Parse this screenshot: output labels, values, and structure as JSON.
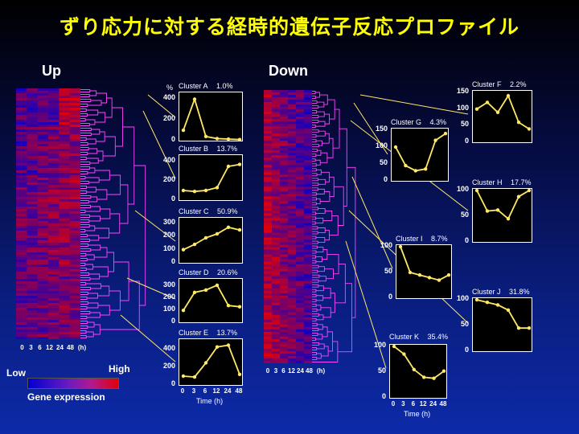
{
  "title": "ずり応力に対する経時的遺伝子反応プロファイル",
  "sections": {
    "up_label": "Up",
    "down_label": "Down"
  },
  "heatmap": {
    "time_labels": [
      "0",
      "3",
      "6",
      "12",
      "24",
      "48",
      "(h)"
    ],
    "colors": {
      "low": "#0000d0",
      "high": "#e0000a",
      "mid": "#6a1cc0"
    }
  },
  "legend": {
    "low": "Low",
    "high": "High",
    "caption": "Gene expression"
  },
  "dendrogram_color": "#ff44ff",
  "line_color": "#ffe866",
  "chart_data": [
    {
      "type": "line",
      "name": "Cluster A",
      "title": "Cluster A",
      "percent": "1.0%",
      "x": [
        "0",
        "3",
        "6",
        "12",
        "24",
        "48"
      ],
      "values": [
        100,
        400,
        40,
        20,
        15,
        10
      ],
      "ylim": [
        0,
        450
      ],
      "yticks": [
        0,
        200,
        400
      ],
      "ylabel": "%"
    },
    {
      "type": "line",
      "name": "Cluster B",
      "title": "Cluster B",
      "percent": "13.7%",
      "x": [
        "0",
        "3",
        "6",
        "12",
        "24",
        "48"
      ],
      "values": [
        100,
        90,
        100,
        130,
        350,
        370
      ],
      "ylim": [
        0,
        450
      ],
      "yticks": [
        0,
        200,
        400
      ]
    },
    {
      "type": "line",
      "name": "Cluster C",
      "title": "Cluster C",
      "percent": "50.9%",
      "x": [
        "0",
        "3",
        "6",
        "12",
        "24",
        "48"
      ],
      "values": [
        100,
        140,
        190,
        220,
        270,
        250
      ],
      "ylim": [
        0,
        330
      ],
      "yticks": [
        0,
        100,
        200,
        300
      ]
    },
    {
      "type": "line",
      "name": "Cluster D",
      "title": "Cluster D",
      "percent": "20.6%",
      "x": [
        "0",
        "3",
        "6",
        "12",
        "24",
        "48"
      ],
      "values": [
        100,
        250,
        270,
        310,
        140,
        130
      ],
      "ylim": [
        0,
        350
      ],
      "yticks": [
        0,
        100,
        200,
        300
      ]
    },
    {
      "type": "line",
      "name": "Cluster E",
      "title": "Cluster E",
      "percent": "13.7%",
      "x": [
        "0",
        "3",
        "6",
        "12",
        "24",
        "48"
      ],
      "values": [
        100,
        90,
        250,
        430,
        450,
        120
      ],
      "ylim": [
        0,
        500
      ],
      "yticks": [
        0,
        200,
        400
      ],
      "xlabel": "Time (h)",
      "show_xticks": true
    },
    {
      "type": "line",
      "name": "Cluster F",
      "title": "Cluster F",
      "percent": "2.2%",
      "x": [
        "0",
        "3",
        "6",
        "12",
        "24",
        "48"
      ],
      "values": [
        100,
        120,
        90,
        140,
        60,
        40
      ],
      "ylim": [
        0,
        150
      ],
      "yticks": [
        0,
        50,
        100,
        150
      ]
    },
    {
      "type": "line",
      "name": "Cluster G",
      "title": "Cluster G",
      "percent": "4.3%",
      "x": [
        "0",
        "3",
        "6",
        "12",
        "24",
        "48"
      ],
      "values": [
        100,
        45,
        30,
        35,
        120,
        140
      ],
      "ylim": [
        0,
        150
      ],
      "yticks": [
        0,
        50,
        100,
        150
      ]
    },
    {
      "type": "line",
      "name": "Cluster H",
      "title": "Cluster H",
      "percent": "17.7%",
      "x": [
        "0",
        "3",
        "6",
        "12",
        "24",
        "48"
      ],
      "values": [
        100,
        60,
        62,
        45,
        88,
        100
      ],
      "ylim": [
        0,
        100
      ],
      "yticks": [
        0,
        50,
        100
      ]
    },
    {
      "type": "line",
      "name": "Cluster I",
      "title": "Cluster I",
      "percent": "8.7%",
      "x": [
        "0",
        "3",
        "6",
        "12",
        "24",
        "48"
      ],
      "values": [
        100,
        50,
        45,
        40,
        35,
        45
      ],
      "ylim": [
        0,
        100
      ],
      "yticks": [
        0,
        50,
        100
      ]
    },
    {
      "type": "line",
      "name": "Cluster J",
      "title": "Cluster J",
      "percent": "31.8%",
      "x": [
        "0",
        "3",
        "6",
        "12",
        "24",
        "48"
      ],
      "values": [
        100,
        95,
        90,
        80,
        45,
        45
      ],
      "ylim": [
        0,
        100
      ],
      "yticks": [
        0,
        50,
        100
      ]
    },
    {
      "type": "line",
      "name": "Cluster K",
      "title": "Cluster K",
      "percent": "35.4%",
      "x": [
        "0",
        "3",
        "6",
        "12",
        "24",
        "48"
      ],
      "values": [
        100,
        85,
        55,
        40,
        38,
        52
      ],
      "ylim": [
        0,
        100
      ],
      "yticks": [
        0,
        50,
        100
      ],
      "xlabel": "Time (h)",
      "show_xticks": true
    }
  ]
}
